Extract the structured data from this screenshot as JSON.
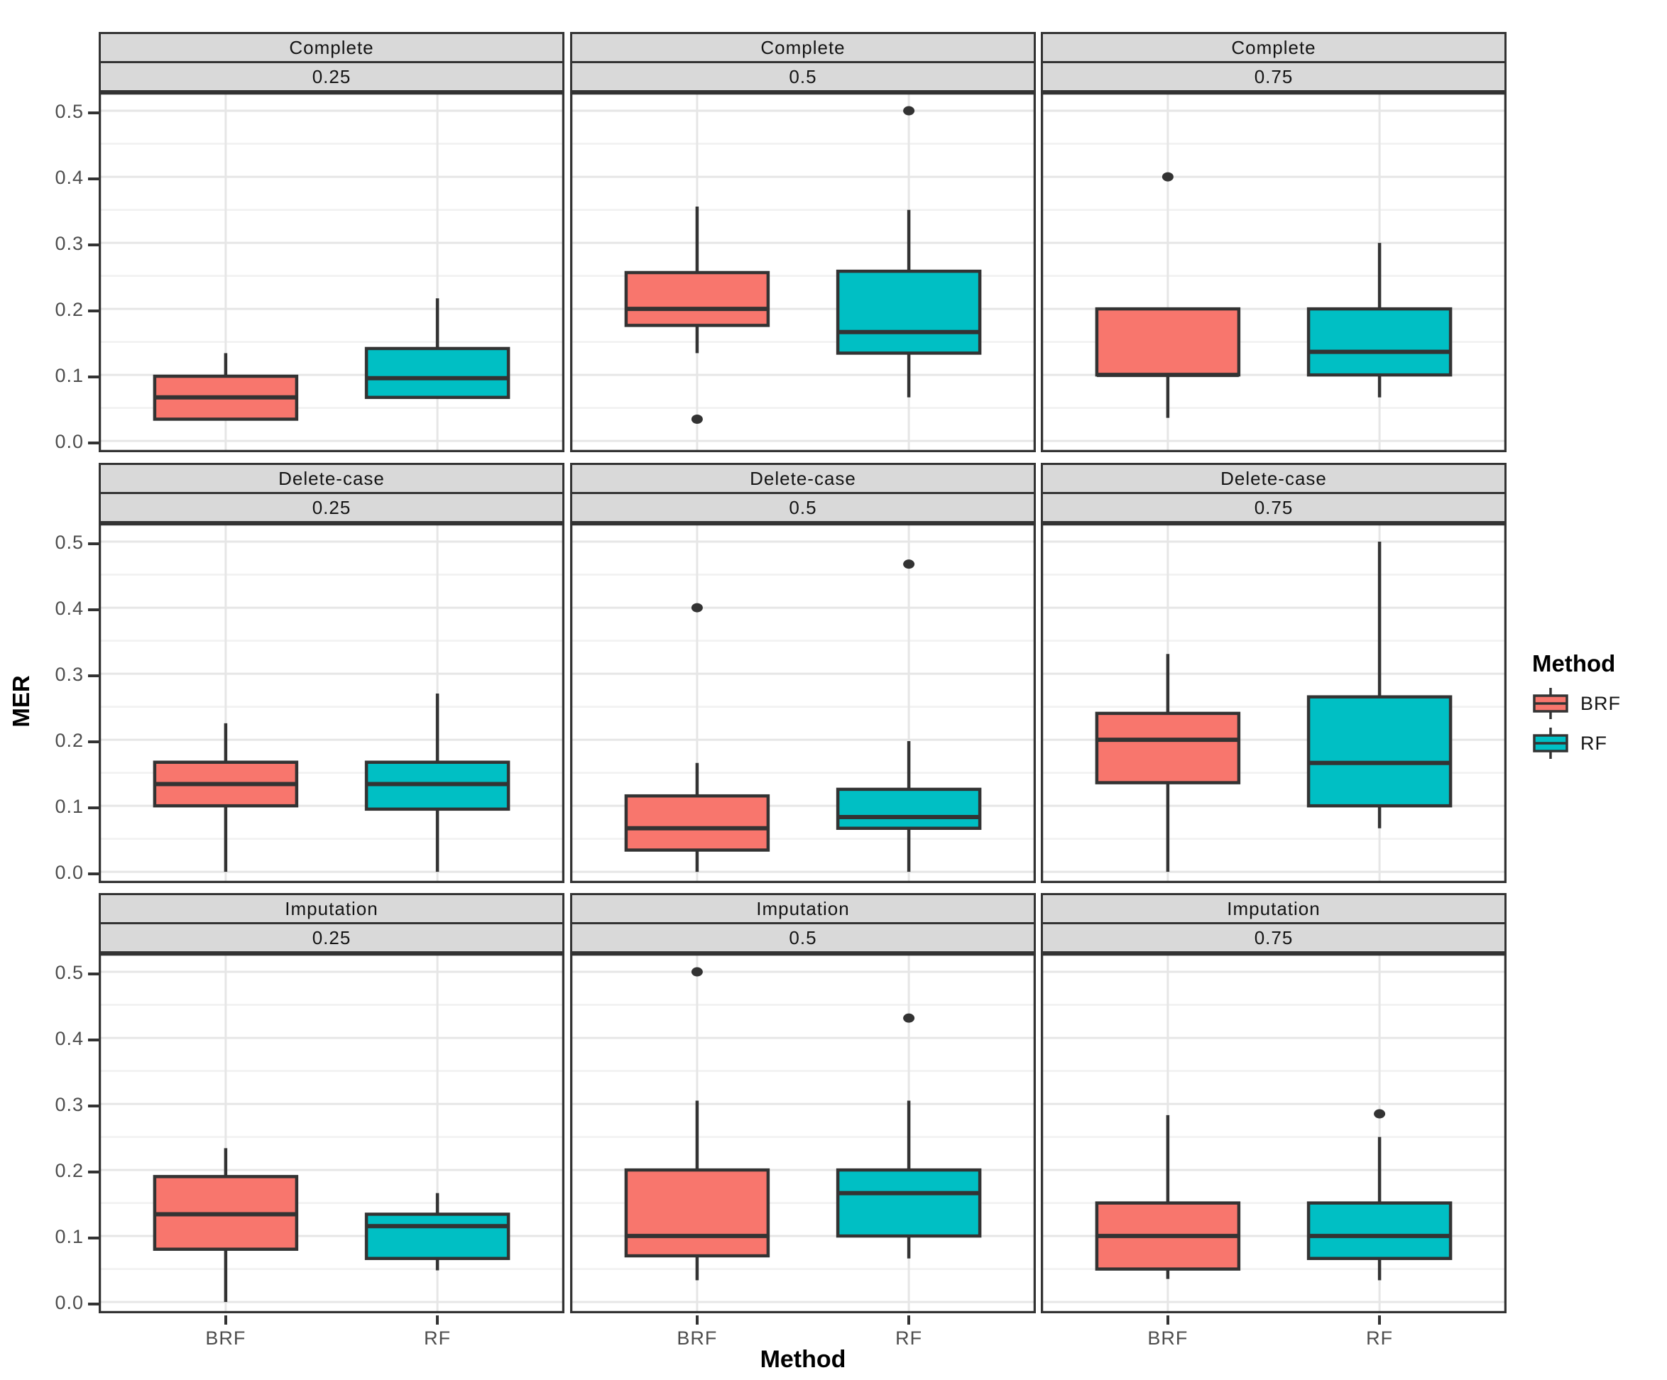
{
  "figure": {
    "background": "#ffffff"
  },
  "axes": {
    "y_title": "MER",
    "x_title": "Method",
    "y_tick_labels": [
      "0.0",
      "0.1",
      "0.2",
      "0.3",
      "0.4",
      "0.5"
    ],
    "x_tick_labels": [
      "BRF",
      "RF"
    ]
  },
  "legend": {
    "title": "Method",
    "entries": [
      {
        "label": "BRF",
        "color": "#F8766D"
      },
      {
        "label": "RF",
        "color": "#00BFC4"
      }
    ]
  },
  "style": {
    "box_border": "#333333",
    "outlier_color": "#333333",
    "strip_bg": "#D9D9D9",
    "grid_major": "#E6E6E6",
    "grid_minor": "#F1F1F1",
    "panel_border": "#333333",
    "tick_label_color": "#4D4D4D"
  },
  "chart_data": {
    "type": "boxplot",
    "title": "",
    "xlabel": "Method",
    "ylabel": "MER",
    "x_categories": [
      "BRF",
      "RF"
    ],
    "facet_rows": [
      "Complete",
      "Delete-case",
      "Imputation"
    ],
    "facet_cols": [
      "0.25",
      "0.5",
      "0.75"
    ],
    "y_ticks": [
      0.0,
      0.1,
      0.2,
      0.3,
      0.4,
      0.5
    ],
    "ylim": [
      -0.017,
      0.528
    ],
    "grid": "major+minor horizontal, major vertical at categories",
    "legend_position": "right",
    "series_colors": {
      "BRF": "#F8766D",
      "RF": "#00BFC4"
    },
    "panels": [
      {
        "facet_row": "Complete",
        "facet_col": "0.25",
        "boxes": [
          {
            "group": "BRF",
            "whisker_low": 0.033,
            "q1": 0.033,
            "median": 0.066,
            "q3": 0.098,
            "whisker_high": 0.133,
            "outliers": []
          },
          {
            "group": "RF",
            "whisker_low": 0.066,
            "q1": 0.066,
            "median": 0.095,
            "q3": 0.14,
            "whisker_high": 0.216,
            "outliers": []
          }
        ]
      },
      {
        "facet_row": "Complete",
        "facet_col": "0.5",
        "boxes": [
          {
            "group": "BRF",
            "whisker_low": 0.133,
            "q1": 0.175,
            "median": 0.2,
            "q3": 0.255,
            "whisker_high": 0.355,
            "outliers": [
              0.033
            ]
          },
          {
            "group": "RF",
            "whisker_low": 0.066,
            "q1": 0.133,
            "median": 0.165,
            "q3": 0.257,
            "whisker_high": 0.35,
            "outliers": [
              0.5
            ]
          }
        ]
      },
      {
        "facet_row": "Complete",
        "facet_col": "0.75",
        "boxes": [
          {
            "group": "BRF",
            "whisker_low": 0.035,
            "q1": 0.1,
            "median": 0.1,
            "q3": 0.2,
            "whisker_high": 0.2,
            "outliers": [
              0.4
            ]
          },
          {
            "group": "RF",
            "whisker_low": 0.066,
            "q1": 0.1,
            "median": 0.135,
            "q3": 0.2,
            "whisker_high": 0.3,
            "outliers": []
          }
        ]
      },
      {
        "facet_row": "Delete-case",
        "facet_col": "0.25",
        "boxes": [
          {
            "group": "BRF",
            "whisker_low": 0.0,
            "q1": 0.1,
            "median": 0.133,
            "q3": 0.166,
            "whisker_high": 0.225,
            "outliers": []
          },
          {
            "group": "RF",
            "whisker_low": 0.0,
            "q1": 0.095,
            "median": 0.133,
            "q3": 0.166,
            "whisker_high": 0.27,
            "outliers": []
          }
        ]
      },
      {
        "facet_row": "Delete-case",
        "facet_col": "0.5",
        "boxes": [
          {
            "group": "BRF",
            "whisker_low": 0.0,
            "q1": 0.033,
            "median": 0.066,
            "q3": 0.115,
            "whisker_high": 0.165,
            "outliers": [
              0.4
            ]
          },
          {
            "group": "RF",
            "whisker_low": 0.0,
            "q1": 0.066,
            "median": 0.083,
            "q3": 0.125,
            "whisker_high": 0.198,
            "outliers": [
              0.466
            ]
          }
        ]
      },
      {
        "facet_row": "Delete-case",
        "facet_col": "0.75",
        "boxes": [
          {
            "group": "BRF",
            "whisker_low": 0.0,
            "q1": 0.135,
            "median": 0.2,
            "q3": 0.24,
            "whisker_high": 0.33,
            "outliers": []
          },
          {
            "group": "RF",
            "whisker_low": 0.066,
            "q1": 0.1,
            "median": 0.165,
            "q3": 0.265,
            "whisker_high": 0.5,
            "outliers": []
          }
        ]
      },
      {
        "facet_row": "Imputation",
        "facet_col": "0.25",
        "boxes": [
          {
            "group": "BRF",
            "whisker_low": 0.0,
            "q1": 0.08,
            "median": 0.133,
            "q3": 0.19,
            "whisker_high": 0.233,
            "outliers": []
          },
          {
            "group": "RF",
            "whisker_low": 0.048,
            "q1": 0.066,
            "median": 0.115,
            "q3": 0.133,
            "whisker_high": 0.165,
            "outliers": []
          }
        ]
      },
      {
        "facet_row": "Imputation",
        "facet_col": "0.5",
        "boxes": [
          {
            "group": "BRF",
            "whisker_low": 0.033,
            "q1": 0.07,
            "median": 0.1,
            "q3": 0.2,
            "whisker_high": 0.305,
            "outliers": [
              0.5
            ]
          },
          {
            "group": "RF",
            "whisker_low": 0.066,
            "q1": 0.1,
            "median": 0.165,
            "q3": 0.2,
            "whisker_high": 0.305,
            "outliers": [
              0.43
            ]
          }
        ]
      },
      {
        "facet_row": "Imputation",
        "facet_col": "0.75",
        "boxes": [
          {
            "group": "BRF",
            "whisker_low": 0.035,
            "q1": 0.05,
            "median": 0.1,
            "q3": 0.15,
            "whisker_high": 0.283,
            "outliers": []
          },
          {
            "group": "RF",
            "whisker_low": 0.033,
            "q1": 0.066,
            "median": 0.1,
            "q3": 0.15,
            "whisker_high": 0.25,
            "outliers": [
              0.285
            ]
          }
        ]
      }
    ]
  }
}
